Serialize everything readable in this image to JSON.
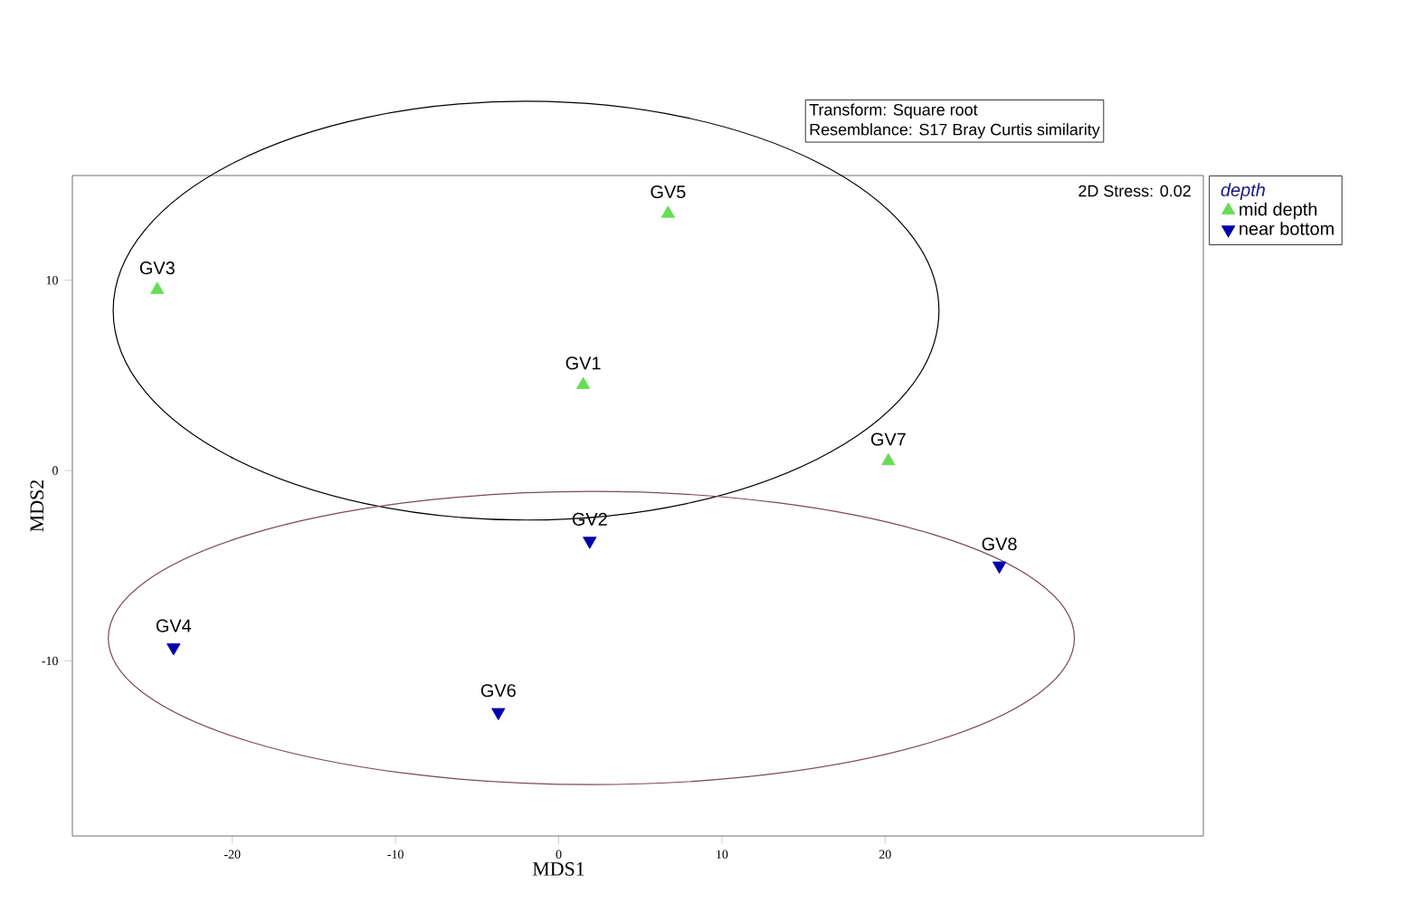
{
  "chart_data": {
    "type": "scatter",
    "xlabel": "MDS1",
    "ylabel": "MDS2",
    "legend_title": "depth",
    "legend": "top right",
    "xlim": [
      -29.8,
      39.5
    ],
    "ylim": [
      -19.2,
      15.5
    ],
    "xticks": [
      -20,
      -10,
      0,
      10,
      20
    ],
    "yticks": [
      -10,
      0,
      10
    ],
    "grid": false,
    "series": [
      {
        "name": "mid depth",
        "color": "#66dd55",
        "marker": "triangle",
        "x": [
          -24.6,
          6.7,
          1.5,
          20.2
        ],
        "values": [
          9.5,
          13.5,
          4.5,
          0.5
        ]
      },
      {
        "name": "near bottom",
        "color": "#0000aa",
        "marker": "triangle-down",
        "x": [
          1.9,
          27.0,
          -23.6,
          -3.7
        ],
        "values": [
          -3.7,
          -5.0,
          -9.3,
          -12.7
        ]
      }
    ],
    "annotations": [
      "Transform: Square root",
      "Resemblance: S17 Bray Curtis similarity",
      "2D Stress: 0.02",
      {
        "text": "GV3",
        "x": -24.6,
        "y": 9.5
      },
      {
        "text": "GV5",
        "x": 6.7,
        "y": 13.5
      },
      {
        "text": "GV1",
        "x": 1.5,
        "y": 4.5
      },
      {
        "text": "GV7",
        "x": 20.2,
        "y": 0.5
      },
      {
        "text": "GV2",
        "x": 1.9,
        "y": -3.7
      },
      {
        "text": "GV8",
        "x": 27.0,
        "y": -5.0
      },
      {
        "text": "GV4",
        "x": -23.6,
        "y": -9.3
      },
      {
        "text": "GV6",
        "x": -3.7,
        "y": -12.7
      }
    ]
  }
}
